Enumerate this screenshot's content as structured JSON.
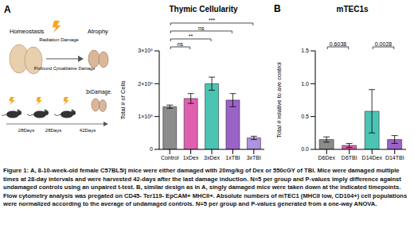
{
  "figure": {
    "panel_labels": [
      "A",
      "B"
    ],
    "schematic": {
      "homeostasis": "Homeostasis",
      "atrophy": "Atrophy",
      "damage": "Radiation Damage",
      "damage_detail": "Profound Cytoablative Damage",
      "intervals": [
        "28Days",
        "28Days",
        "42Days"
      ],
      "outcome": "3xDamage."
    },
    "caption": "Figure 1: A, 8-10-week-old female C57BL5/j mice were either damaged with 20mg/kg of Dex or 550cGY of TBI. Mice were damaged multiple times at 28-day intervals and were harvested 42-days after the last damage induction. N=5 per group and P-values imply difference against undamaged controls using an unpaired t-test. B, similar design as in A, singly damaged mice were taken down at the indicated timepoints. Flow cytometry analysis was pregated on CD45- Ter119- EpCAM+ MHCII+. Absolute numbers of mTEC1 (MHCII low, CD104+) cell populations were normalized according to the average of undamaged controls. N=5 per group and P-values generated from a one-way ANOVA."
  },
  "chart_data": [
    {
      "type": "bar",
      "title": "Thymic Cellularity",
      "ylabel": "Total # of Cells",
      "categories": [
        "Control",
        "1xDex",
        "3xDex",
        "1xTBI",
        "3xTBI"
      ],
      "values": [
        130000000,
        155000000,
        200000000,
        150000000,
        35000000
      ],
      "errors": [
        5000000,
        15000000,
        20000000,
        20000000,
        5000000
      ],
      "colors": [
        "#8c8c8c",
        "#e060b0",
        "#4cc4b4",
        "#9b63c8",
        "#ad92e0"
      ],
      "ylim": [
        0,
        300000000
      ],
      "yticks": [
        0,
        {
          "value": 100000000,
          "label": "1×10⁸"
        },
        {
          "value": 200000000,
          "label": "2×10⁸"
        },
        {
          "value": 300000000,
          "label": "3×10⁸"
        }
      ],
      "annotations": [
        {
          "from": "Control",
          "to": "1xDex",
          "text": "ns"
        },
        {
          "from": "Control",
          "to": "3xDex",
          "text": "**"
        },
        {
          "from": "Control",
          "to": "1xTBI",
          "text": "ns"
        },
        {
          "from": "Control",
          "to": "3xTBI",
          "text": "***"
        }
      ]
    },
    {
      "type": "bar",
      "title": "mTEC1s",
      "ylabel": "Total # relative to ave control",
      "categories": [
        "D6Dex",
        "D6TBI",
        "D14Dex",
        "D14TBI"
      ],
      "values": [
        0.15,
        0.06,
        0.58,
        0.15
      ],
      "errors": [
        0.04,
        0.03,
        0.33,
        0.06
      ],
      "colors": [
        "#8c8c8c",
        "#e060b0",
        "#4cc4b4",
        "#9b63c8"
      ],
      "ylim": [
        0,
        1.5
      ],
      "yticks": [
        {
          "value": 0,
          "label": "0.0"
        },
        0.5,
        {
          "value": 1,
          "label": "1.0"
        },
        1.5
      ],
      "annotations": [
        {
          "from": "D6Dex",
          "to": "D6TBI",
          "text": "0.6038"
        },
        {
          "from": "D14Dex",
          "to": "D14TBI",
          "text": "0.0028"
        }
      ]
    }
  ]
}
